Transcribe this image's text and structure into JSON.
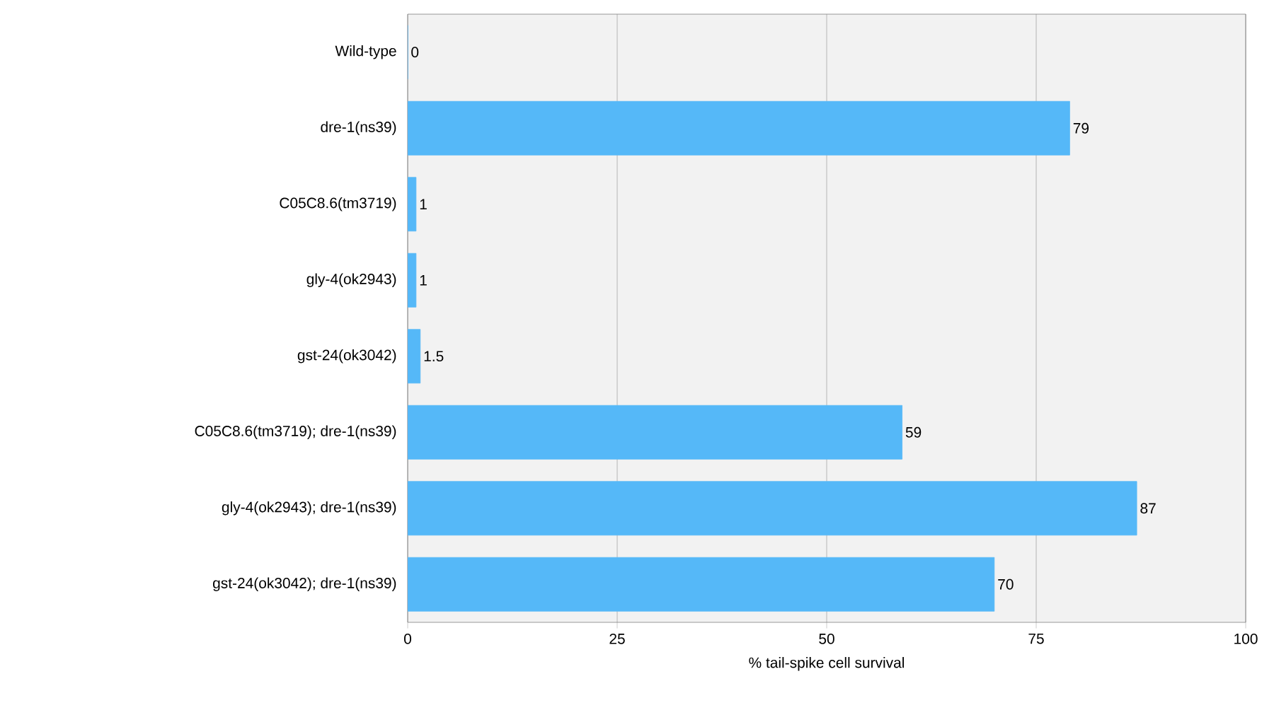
{
  "chart_data": {
    "type": "bar",
    "orientation": "horizontal",
    "xlabel": "% tail-spike cell survival",
    "categories": [
      "Wild-type",
      "dre-1(ns39)",
      "C05C8.6(tm3719)",
      "gly-4(ok2943)",
      "gst-24(ok3042)",
      "C05C8.6(tm3719); dre-1(ns39)",
      "gly-4(ok2943); dre-1(ns39)",
      "gst-24(ok3042); dre-1(ns39)"
    ],
    "values": [
      0,
      79,
      1,
      1,
      1.5,
      59,
      87,
      70
    ],
    "color": "#55b8f8",
    "xlim": [
      0,
      100
    ],
    "xticks": [
      0,
      25,
      50,
      75,
      100
    ],
    "grid": "x",
    "data_labels": true
  }
}
